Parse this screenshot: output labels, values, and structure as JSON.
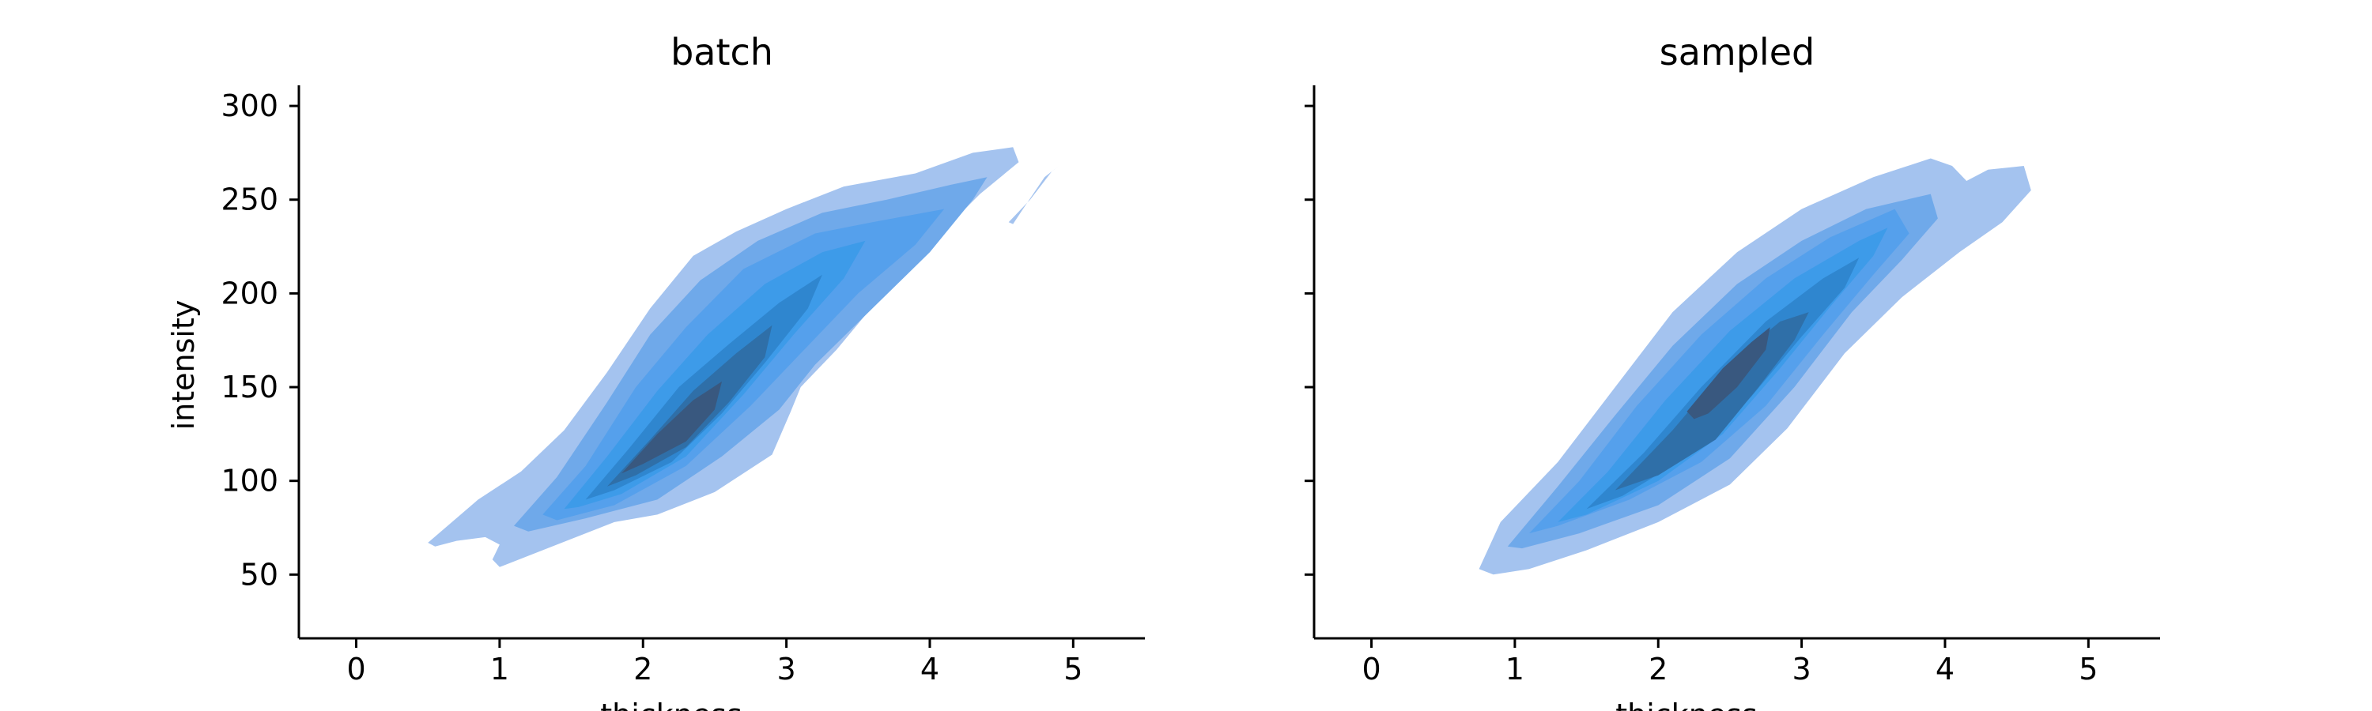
{
  "chart_data": [
    {
      "type": "contour",
      "title": "batch",
      "xlabel": "thickness",
      "ylabel": "intensity",
      "xlim": [
        -0.4,
        5.5
      ],
      "ylim": [
        16,
        311
      ],
      "xticks": [
        0,
        1,
        2,
        3,
        4,
        5
      ],
      "yticks": [
        50,
        100,
        150,
        200,
        250,
        300
      ],
      "grid": false,
      "levels": [
        {
          "level": 1,
          "color": "#a4c3ef",
          "polygons": [
            [
              [
                0.5,
                67
              ],
              [
                0.85,
                90
              ],
              [
                1.15,
                105
              ],
              [
                1.45,
                127
              ],
              [
                1.75,
                158
              ],
              [
                2.05,
                192
              ],
              [
                2.35,
                220
              ],
              [
                2.65,
                233
              ],
              [
                3.0,
                245
              ],
              [
                3.4,
                257
              ],
              [
                3.9,
                264
              ],
              [
                4.3,
                275
              ],
              [
                4.58,
                278
              ],
              [
                4.62,
                270
              ],
              [
                4.35,
                253
              ],
              [
                4.05,
                230
              ],
              [
                3.6,
                193
              ],
              [
                3.35,
                170
              ],
              [
                3.1,
                150
              ],
              [
                3.03,
                137
              ],
              [
                2.9,
                114
              ],
              [
                2.5,
                94
              ],
              [
                2.1,
                82
              ],
              [
                1.8,
                78
              ],
              [
                1.4,
                66
              ],
              [
                1.0,
                54
              ],
              [
                0.95,
                58
              ],
              [
                1.0,
                66
              ],
              [
                0.9,
                70
              ],
              [
                0.7,
                68
              ],
              [
                0.55,
                65
              ]
            ],
            [
              [
                4.55,
                238
              ],
              [
                4.7,
                250
              ],
              [
                4.85,
                265
              ],
              [
                4.9,
                268
              ],
              [
                4.8,
                262
              ],
              [
                4.65,
                245
              ],
              [
                4.58,
                237
              ]
            ]
          ]
        },
        {
          "level": 2,
          "color": "#6fa9ea",
          "polygons": [
            [
              [
                1.1,
                76
              ],
              [
                1.4,
                102
              ],
              [
                1.75,
                142
              ],
              [
                2.05,
                178
              ],
              [
                2.4,
                207
              ],
              [
                2.8,
                228
              ],
              [
                3.25,
                243
              ],
              [
                3.7,
                250
              ],
              [
                4.15,
                258
              ],
              [
                4.4,
                262
              ],
              [
                4.3,
                250
              ],
              [
                4.0,
                222
              ],
              [
                3.6,
                192
              ],
              [
                3.2,
                162
              ],
              [
                2.95,
                138
              ],
              [
                2.55,
                113
              ],
              [
                2.1,
                90
              ],
              [
                1.6,
                80
              ],
              [
                1.2,
                73
              ]
            ]
          ]
        },
        {
          "level": 3,
          "color": "#55a0ec",
          "polygons": [
            [
              [
                1.3,
                82
              ],
              [
                1.6,
                108
              ],
              [
                1.95,
                150
              ],
              [
                2.3,
                182
              ],
              [
                2.7,
                213
              ],
              [
                3.2,
                232
              ],
              [
                3.6,
                238
              ],
              [
                4.1,
                245
              ],
              [
                3.9,
                226
              ],
              [
                3.5,
                200
              ],
              [
                3.1,
                168
              ],
              [
                2.75,
                140
              ],
              [
                2.3,
                108
              ],
              [
                1.8,
                87
              ],
              [
                1.4,
                79
              ]
            ]
          ]
        },
        {
          "level": 4,
          "color": "#3d9be9",
          "polygons": [
            [
              [
                1.45,
                85
              ],
              [
                1.75,
                113
              ],
              [
                2.1,
                148
              ],
              [
                2.45,
                178
              ],
              [
                2.85,
                205
              ],
              [
                3.25,
                222
              ],
              [
                3.55,
                228
              ],
              [
                3.4,
                208
              ],
              [
                3.05,
                178
              ],
              [
                2.7,
                146
              ],
              [
                2.3,
                113
              ],
              [
                1.85,
                93
              ],
              [
                1.55,
                86
              ]
            ]
          ]
        },
        {
          "level": 5,
          "color": "#2f86cf",
          "polygons": [
            [
              [
                1.6,
                90
              ],
              [
                1.9,
                117
              ],
              [
                2.25,
                150
              ],
              [
                2.6,
                173
              ],
              [
                2.95,
                195
              ],
              [
                3.25,
                210
              ],
              [
                3.15,
                192
              ],
              [
                2.85,
                163
              ],
              [
                2.55,
                136
              ],
              [
                2.2,
                110
              ],
              [
                1.8,
                95
              ]
            ]
          ]
        },
        {
          "level": 6,
          "color": "#2f6fa8",
          "polygons": [
            [
              [
                1.75,
                97
              ],
              [
                2.05,
                122
              ],
              [
                2.35,
                148
              ],
              [
                2.65,
                168
              ],
              [
                2.9,
                183
              ],
              [
                2.85,
                166
              ],
              [
                2.6,
                142
              ],
              [
                2.3,
                118
              ],
              [
                1.95,
                103
              ]
            ]
          ]
        },
        {
          "level": 7,
          "color": "#39587f",
          "polygons": [
            [
              [
                1.85,
                104
              ],
              [
                2.1,
                125
              ],
              [
                2.35,
                143
              ],
              [
                2.55,
                153
              ],
              [
                2.5,
                138
              ],
              [
                2.3,
                121
              ],
              [
                2.0,
                109
              ]
            ]
          ]
        }
      ]
    },
    {
      "type": "contour",
      "title": "sampled",
      "xlabel": "thickness",
      "ylabel": "",
      "xlim": [
        -0.4,
        5.5
      ],
      "ylim": [
        16,
        311
      ],
      "xticks": [
        0,
        1,
        2,
        3,
        4,
        5
      ],
      "yticks": [
        50,
        100,
        150,
        200,
        250,
        300
      ],
      "grid": false,
      "levels": [
        {
          "level": 1,
          "color": "#a4c3ef",
          "polygons": [
            [
              [
                0.75,
                53
              ],
              [
                0.9,
                78
              ],
              [
                1.3,
                110
              ],
              [
                1.7,
                150
              ],
              [
                2.1,
                190
              ],
              [
                2.55,
                222
              ],
              [
                3.0,
                245
              ],
              [
                3.5,
                262
              ],
              [
                3.9,
                272
              ],
              [
                4.05,
                268
              ],
              [
                4.15,
                260
              ],
              [
                4.3,
                266
              ],
              [
                4.55,
                268
              ],
              [
                4.6,
                255
              ],
              [
                4.4,
                238
              ],
              [
                4.1,
                222
              ],
              [
                3.7,
                198
              ],
              [
                3.3,
                168
              ],
              [
                2.9,
                128
              ],
              [
                2.5,
                98
              ],
              [
                2.0,
                78
              ],
              [
                1.5,
                63
              ],
              [
                1.1,
                53
              ],
              [
                0.85,
                50
              ]
            ]
          ]
        },
        {
          "level": 2,
          "color": "#6fa9ea",
          "polygons": [
            [
              [
                0.95,
                65
              ],
              [
                1.3,
                97
              ],
              [
                1.7,
                135
              ],
              [
                2.1,
                172
              ],
              [
                2.55,
                205
              ],
              [
                3.0,
                228
              ],
              [
                3.45,
                245
              ],
              [
                3.9,
                253
              ],
              [
                3.95,
                240
              ],
              [
                3.7,
                218
              ],
              [
                3.35,
                190
              ],
              [
                2.95,
                150
              ],
              [
                2.5,
                112
              ],
              [
                2.0,
                87
              ],
              [
                1.45,
                72
              ],
              [
                1.05,
                64
              ]
            ]
          ]
        },
        {
          "level": 3,
          "color": "#55a0ec",
          "polygons": [
            [
              [
                1.1,
                72
              ],
              [
                1.45,
                100
              ],
              [
                1.85,
                140
              ],
              [
                2.3,
                178
              ],
              [
                2.75,
                208
              ],
              [
                3.2,
                230
              ],
              [
                3.65,
                245
              ],
              [
                3.75,
                232
              ],
              [
                3.5,
                210
              ],
              [
                3.15,
                178
              ],
              [
                2.75,
                140
              ],
              [
                2.3,
                110
              ],
              [
                1.8,
                90
              ],
              [
                1.3,
                76
              ]
            ]
          ]
        },
        {
          "level": 4,
          "color": "#3d9be9",
          "polygons": [
            [
              [
                1.3,
                78
              ],
              [
                1.65,
                105
              ],
              [
                2.05,
                143
              ],
              [
                2.5,
                180
              ],
              [
                2.95,
                208
              ],
              [
                3.4,
                228
              ],
              [
                3.6,
                235
              ],
              [
                3.5,
                220
              ],
              [
                3.2,
                193
              ],
              [
                2.85,
                160
              ],
              [
                2.45,
                125
              ],
              [
                2.0,
                100
              ],
              [
                1.5,
                82
              ]
            ]
          ]
        },
        {
          "level": 5,
          "color": "#2f86cf",
          "polygons": [
            [
              [
                1.5,
                85
              ],
              [
                1.9,
                115
              ],
              [
                2.3,
                150
              ],
              [
                2.75,
                185
              ],
              [
                3.15,
                208
              ],
              [
                3.4,
                219
              ],
              [
                3.3,
                203
              ],
              [
                3.0,
                177
              ],
              [
                2.65,
                145
              ],
              [
                2.25,
                115
              ],
              [
                1.75,
                92
              ]
            ]
          ]
        },
        {
          "level": 6,
          "color": "#2f6fa8",
          "polygons": [
            [
              [
                1.7,
                95
              ],
              [
                2.1,
                127
              ],
              [
                2.5,
                163
              ],
              [
                2.85,
                185
              ],
              [
                3.05,
                190
              ],
              [
                2.95,
                175
              ],
              [
                2.7,
                150
              ],
              [
                2.4,
                122
              ],
              [
                2.0,
                103
              ]
            ]
          ]
        },
        {
          "level": 7,
          "color": "#39587f",
          "polygons": [
            [
              [
                2.2,
                137
              ],
              [
                2.45,
                160
              ],
              [
                2.65,
                174
              ],
              [
                2.78,
                182
              ],
              [
                2.75,
                170
              ],
              [
                2.55,
                150
              ],
              [
                2.35,
                136
              ],
              [
                2.25,
                133
              ]
            ]
          ]
        }
      ]
    }
  ]
}
